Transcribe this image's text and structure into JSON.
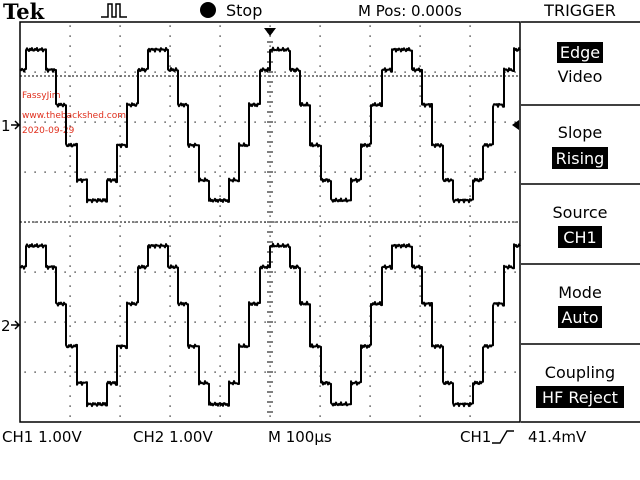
{
  "header": {
    "brand": "Tek",
    "run_status": "Stop",
    "position": "M Pos: 0.000s",
    "menu_title": "TRIGGER"
  },
  "watermark": {
    "name": "FassyJim",
    "site": "www.thebackshed.com",
    "date": "2020-09-29"
  },
  "channel_markers": {
    "ch1": "1",
    "ch2": "2"
  },
  "menu": {
    "type": {
      "value1": "Edge",
      "value2": "Video",
      "selected": "Edge"
    },
    "slope": {
      "label": "Slope",
      "value": "Rising"
    },
    "source": {
      "label": "Source",
      "value": "CH1"
    },
    "mode": {
      "label": "Mode",
      "value": "Auto"
    },
    "coupling": {
      "label": "Coupling",
      "value": "HF Reject"
    }
  },
  "readout": {
    "ch1_scale": "CH1  1.00V",
    "ch2_scale": "CH2  1.00V",
    "timebase": "M 100µs",
    "trigger_source": "CH1",
    "trigger_level": "41.4mV"
  },
  "colors": {
    "trace": "#000000",
    "grid": "#000000",
    "watermark": "#e0301e",
    "background": "#ffffff"
  },
  "waveform": {
    "description_free": true,
    "cycles_visible": 4,
    "steps_per_half_cycle": 6
  }
}
